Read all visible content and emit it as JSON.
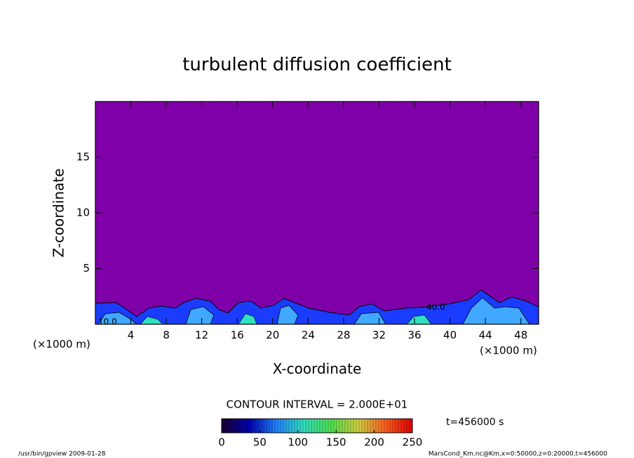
{
  "chart_data": {
    "type": "contour",
    "title": "turbulent diffusion coefficient",
    "xlabel": "X-coordinate",
    "ylabel": "Z-coordinate",
    "x_unit": "(×1000 m)",
    "y_unit": "(×1000 m)",
    "xlim": [
      0,
      50
    ],
    "xticks": [
      4,
      8,
      12,
      16,
      20,
      24,
      28,
      32,
      36,
      40,
      44,
      48
    ],
    "ylim": [
      0,
      20
    ],
    "yticks": [
      5,
      10,
      15
    ],
    "field_color": "#7f00a8",
    "contour_labels": [
      "10.0",
      "40.0"
    ],
    "contour_interval": "CONTOUR INTERVAL = 2.000E+01",
    "colorbar": {
      "lim": [
        0,
        250
      ],
      "ticks": [
        0,
        50,
        100,
        150,
        200,
        250
      ],
      "colors": [
        "#1a0030",
        "#0000b0",
        "#2080ff",
        "#30e0c0",
        "#50e050",
        "#d0d040",
        "#ff6020",
        "#e00000"
      ]
    },
    "time_label": "t=456000 s",
    "footer_left": "/usr/bin/gpview  2009-01-28",
    "footer_right": "MarsCond_Km.nc@Km,x=0:50000,z=0:20000,t=456000"
  }
}
